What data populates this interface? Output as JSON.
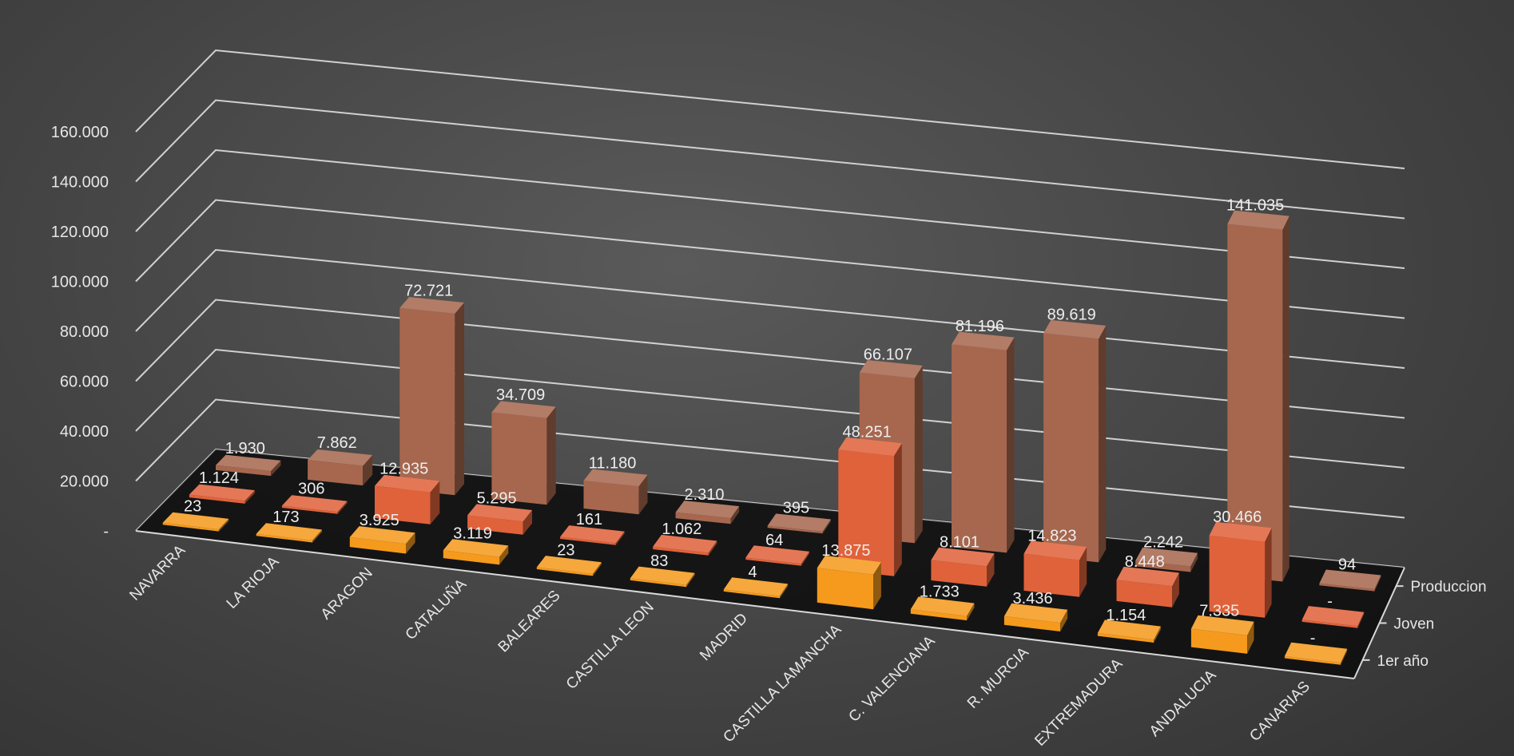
{
  "chart_data": {
    "type": "bar",
    "subtype": "3d-column",
    "title": "",
    "xlabel": "",
    "ylabel": "",
    "ylim": [
      0,
      160000
    ],
    "y_ticks": [
      {
        "value": 0,
        "label": "-"
      },
      {
        "value": 20000,
        "label": "20.000"
      },
      {
        "value": 40000,
        "label": "40.000"
      },
      {
        "value": 60000,
        "label": "60.000"
      },
      {
        "value": 80000,
        "label": "80.000"
      },
      {
        "value": 100000,
        "label": "100.000"
      },
      {
        "value": 120000,
        "label": "120.000"
      },
      {
        "value": 140000,
        "label": "140.000"
      },
      {
        "value": 160000,
        "label": "160.000"
      }
    ],
    "grid": true,
    "legend": "depth-axis-right",
    "categories": [
      "NAVARRA",
      "LA RIOJA",
      "ARAGON",
      "CATALUÑA",
      "BALEARES",
      "CASTILLA LEON",
      "MADRID",
      "CASTILLA LAMANCHA",
      "C. VALENCIANA",
      "R. MURCIA",
      "EXTREMADURA",
      "ANDALUCIA",
      "CANARIAS"
    ],
    "series": [
      {
        "name": "1er año",
        "color": "#f59a1c",
        "values": [
          23,
          173,
          3925,
          3119,
          23,
          83,
          4,
          13875,
          1733,
          3436,
          1154,
          7335,
          0
        ],
        "labels": [
          "23",
          "173",
          "3.925",
          "3.119",
          "23",
          "83",
          "4",
          "13.875",
          "1.733",
          "3.436",
          "1.154",
          "7.335",
          "-"
        ]
      },
      {
        "name": "Joven",
        "color": "#e0623a",
        "values": [
          1124,
          306,
          12935,
          5295,
          161,
          1062,
          64,
          48251,
          8101,
          14823,
          8448,
          30466,
          0
        ],
        "labels": [
          "1.124",
          "306",
          "12.935",
          "5.295",
          "161",
          "1.062",
          "64",
          "48.251",
          "8.101",
          "14.823",
          "8.448",
          "30.466",
          "-"
        ]
      },
      {
        "name": "Produccion",
        "color": "#a6674e",
        "values": [
          1930,
          7862,
          72721,
          34709,
          11180,
          2310,
          395,
          66107,
          81196,
          89619,
          2242,
          141035,
          94
        ],
        "labels": [
          "1.930",
          "7.862",
          "72.721",
          "34.709",
          "11.180",
          "2.310",
          "395",
          "66.107",
          "81.196",
          "89.619",
          "2.242",
          "141.035",
          "94"
        ]
      }
    ]
  }
}
